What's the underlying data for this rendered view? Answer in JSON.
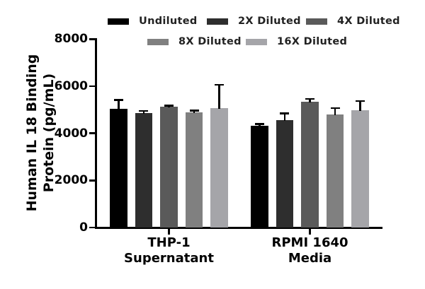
{
  "legend": {
    "items": [
      {
        "label": "Undiluted",
        "color": "#000000"
      },
      {
        "label": "2X Diluted",
        "color": "#2e2e2e"
      },
      {
        "label": "4X Diluted",
        "color": "#5a5a5a"
      },
      {
        "label": "8X Diluted",
        "color": "#808080"
      },
      {
        "label": "16X Diluted",
        "color": "#a5a5a9"
      }
    ]
  },
  "chart_data": {
    "type": "bar",
    "title": "",
    "ylabel": "Human IL 18 Binding Protein (pg/mL)",
    "ylabel_lines": [
      "Human IL 18 Binding",
      "Protein (pg/mL)"
    ],
    "xlabel": "",
    "ylim": [
      0,
      8000
    ],
    "yticks": [
      0,
      2000,
      4000,
      6000,
      8000
    ],
    "grid": false,
    "legend_position": "top",
    "error_bars": "upper only (SD)",
    "categories": [
      "THP-1 Supernatant",
      "RPMI 1640 Media"
    ],
    "category_lines": [
      [
        "THP-1",
        "Supernatant"
      ],
      [
        "RPMI 1640",
        "Media"
      ]
    ],
    "series": [
      {
        "name": "Undiluted",
        "color": "#000000",
        "values": [
          5050,
          4330
        ],
        "errors": [
          370,
          75
        ]
      },
      {
        "name": "2X Diluted",
        "color": "#2e2e2e",
        "values": [
          4870,
          4550
        ],
        "errors": [
          80,
          300
        ]
      },
      {
        "name": "4X Diluted",
        "color": "#5a5a5a",
        "values": [
          5130,
          5350
        ],
        "errors": [
          50,
          120
        ]
      },
      {
        "name": "8X Diluted",
        "color": "#808080",
        "values": [
          4890,
          4800
        ],
        "errors": [
          75,
          270
        ]
      },
      {
        "name": "16X Diluted",
        "color": "#a5a5a9",
        "values": [
          5070,
          4970
        ],
        "errors": [
          990,
          400
        ]
      }
    ]
  }
}
